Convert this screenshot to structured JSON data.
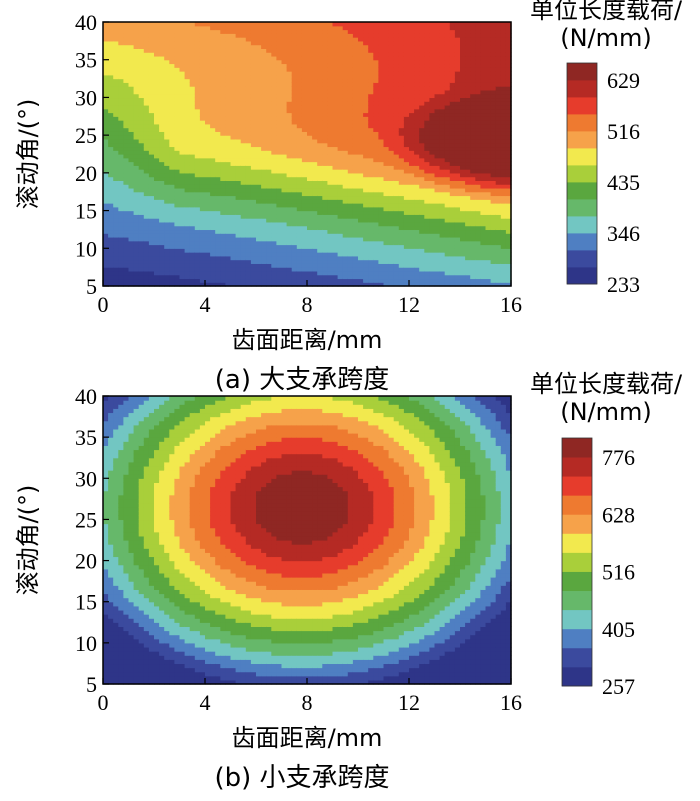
{
  "chart_data": [
    {
      "type": "heatmap",
      "subtype": "filled-contour",
      "caption": "(a)  大支承跨度",
      "xlabel": "齿面距离/mm",
      "ylabel": "滚动角/(°)",
      "xlim": [
        0,
        16
      ],
      "ylim": [
        5,
        40
      ],
      "xticks": [
        "0",
        "4",
        "8",
        "12",
        "16"
      ],
      "yticks": [
        "5",
        "10",
        "15",
        "20",
        "25",
        "30",
        "35",
        "40"
      ],
      "colorbar": {
        "title_line1": "单位长度载荷/",
        "title_line2": "(N/mm)",
        "labels": [
          "629",
          "516",
          "435",
          "346",
          "233"
        ],
        "min": 233,
        "max": 629
      },
      "grid": false,
      "description_of_field": "load low at left/bottom-left, rising toward right; peak near x=16, angle=24"
    },
    {
      "type": "heatmap",
      "subtype": "filled-contour",
      "caption": "(b)  小支承跨度",
      "xlabel": "齿面距离/mm",
      "ylabel": "滚动角/(°)",
      "xlim": [
        0,
        16
      ],
      "ylim": [
        5,
        40
      ],
      "xticks": [
        "0",
        "4",
        "8",
        "12",
        "16"
      ],
      "yticks": [
        "5",
        "10",
        "15",
        "20",
        "25",
        "30",
        "35",
        "40"
      ],
      "colorbar": {
        "title_line1": "单位长度载荷/",
        "title_line2": "(N/mm)",
        "labels": [
          "776",
          "628",
          "516",
          "405",
          "257"
        ],
        "min": 257,
        "max": 776
      },
      "grid": false,
      "description_of_field": "load peak at center near x=8, angle=27; decreasing toward all edges"
    }
  ],
  "colors": {
    "levels": [
      "#2e3588",
      "#3b4a9e",
      "#4f7fc2",
      "#72c6c2",
      "#66b86a",
      "#5aa73f",
      "#a9cf3a",
      "#f2e94e",
      "#f6a24a",
      "#ee7a30",
      "#e63c2c",
      "#b52a24",
      "#8f2723"
    ]
  }
}
